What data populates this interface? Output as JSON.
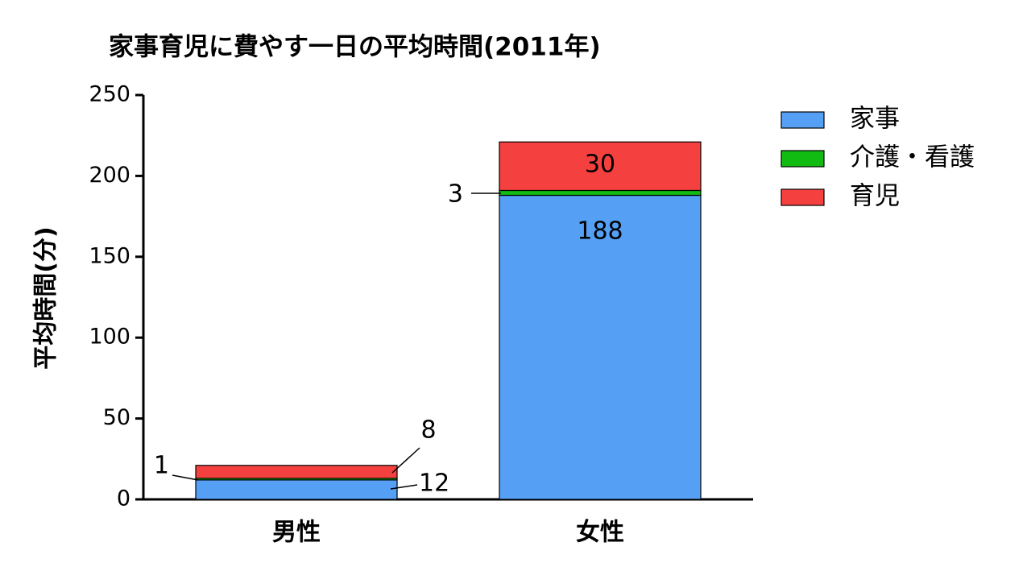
{
  "chart_data": {
    "type": "stacked_bar",
    "title": "家事育児に費やす一日の平均時間(2011年)",
    "y_label": "平均時間(分)",
    "categories": [
      "男性",
      "女性"
    ],
    "series": [
      {
        "name": "家事",
        "color": "#559ff5",
        "values": [
          12,
          188
        ]
      },
      {
        "name": "介護・看護",
        "color": "#11bb11",
        "values": [
          1,
          3
        ]
      },
      {
        "name": "育児",
        "color": "#f54040",
        "values": [
          8,
          30
        ]
      }
    ],
    "ylim": [
      0,
      250
    ],
    "yticks": [
      0,
      50,
      100,
      150,
      200,
      250
    ],
    "legend": "upper right"
  }
}
